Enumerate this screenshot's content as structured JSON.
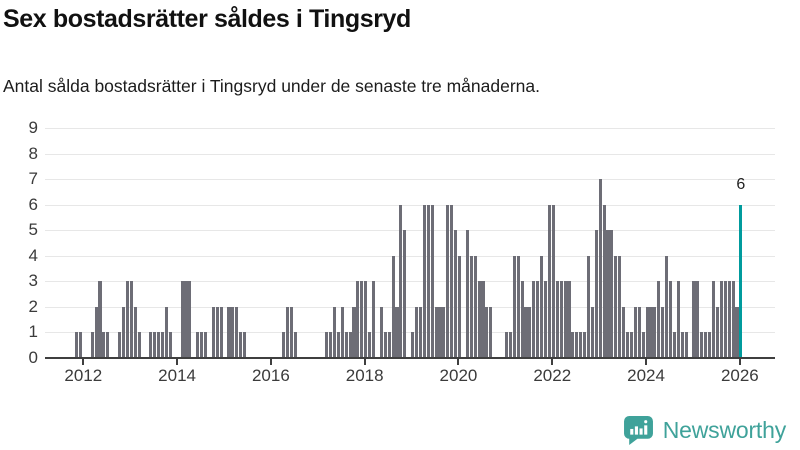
{
  "header": {
    "title": "Sex bostadsrätter såldes i Tingsryd",
    "subtitle": "Antal sålda bostadsrätter i Tingsryd under de senaste tre månaderna."
  },
  "footer": {
    "brand": "Newsworthy",
    "logo_icon": "speech-bubble-bar-chart-icon"
  },
  "colors": {
    "bar": "#6d6d76",
    "highlight_bar": "#009b9d",
    "gridline": "#e7e7e7",
    "axis": "#3f3f3f",
    "brand_teal": "#3fa29a"
  },
  "chart_data": {
    "type": "bar",
    "title": "Sex bostadsrätter såldes i Tingsryd",
    "subtitle": "Antal sålda bostadsrätter i Tingsryd under de senaste tre månaderna.",
    "frequency": "monthly",
    "start_month": "2011-11",
    "end_month": "2026-01",
    "values": [
      1,
      1,
      0,
      0,
      1,
      2,
      3,
      1,
      1,
      0,
      0,
      1,
      2,
      3,
      3,
      2,
      1,
      0,
      0,
      1,
      1,
      1,
      1,
      2,
      1,
      0,
      0,
      3,
      3,
      3,
      0,
      1,
      1,
      1,
      0,
      2,
      2,
      2,
      0,
      2,
      2,
      2,
      1,
      1,
      0,
      0,
      0,
      0,
      0,
      0,
      0,
      0,
      0,
      1,
      2,
      2,
      1,
      0,
      0,
      0,
      0,
      0,
      0,
      0,
      1,
      1,
      2,
      1,
      2,
      1,
      1,
      2,
      3,
      3,
      3,
      1,
      3,
      0,
      2,
      1,
      1,
      4,
      2,
      6,
      5,
      0,
      1,
      2,
      2,
      6,
      6,
      6,
      2,
      2,
      2,
      6,
      6,
      5,
      4,
      0,
      5,
      4,
      4,
      3,
      3,
      2,
      2,
      0,
      0,
      0,
      1,
      1,
      4,
      4,
      3,
      2,
      2,
      3,
      3,
      4,
      3,
      6,
      6,
      3,
      3,
      3,
      3,
      1,
      1,
      1,
      1,
      4,
      2,
      5,
      7,
      6,
      5,
      5,
      4,
      4,
      2,
      1,
      1,
      2,
      2,
      1,
      2,
      2,
      2,
      3,
      2,
      4,
      3,
      1,
      3,
      1,
      1,
      0,
      3,
      3,
      1,
      1,
      1,
      3,
      2,
      3,
      3,
      3,
      3,
      2,
      6
    ],
    "highlight_last": true,
    "annotation_label": "6",
    "ylim": [
      0,
      9
    ],
    "y_ticks": [
      0,
      1,
      2,
      3,
      4,
      5,
      6,
      7,
      8,
      9
    ],
    "x_ticks": [
      2012,
      2014,
      2016,
      2018,
      2020,
      2022,
      2024,
      2026
    ],
    "grid": true,
    "legend": "none"
  }
}
